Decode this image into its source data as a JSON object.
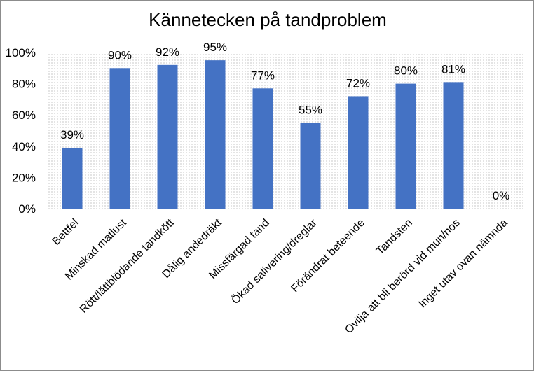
{
  "chart_data": {
    "type": "bar",
    "title": "Kännetecken på tandproblem",
    "xlabel": "",
    "ylabel": "",
    "categories": [
      "Bettfel",
      "Minskad matlust",
      "Rött/lättblödande tandkött",
      "Dålig andedräkt",
      "Missfärgad tand",
      "Ökad salivering/dreglar",
      "Förändrat beteende",
      "Tandsten",
      "Ovilja att bli berörd vid mun/nos",
      "Inget utav ovan nämnda"
    ],
    "values": [
      39,
      90,
      92,
      95,
      77,
      55,
      72,
      80,
      81,
      0
    ],
    "data_labels": [
      "39%",
      "90%",
      "92%",
      "95%",
      "77%",
      "55%",
      "72%",
      "80%",
      "81%",
      "0%"
    ],
    "ylim": [
      0,
      100
    ],
    "yticks": [
      0,
      20,
      40,
      60,
      80,
      100
    ],
    "ytick_labels": [
      "0%",
      "20%",
      "40%",
      "60%",
      "80%",
      "100%"
    ],
    "grid": "dotted background",
    "legend": "none",
    "colors": {
      "bar": "#4472c4",
      "plot_grid": "#e4e4e4"
    }
  }
}
